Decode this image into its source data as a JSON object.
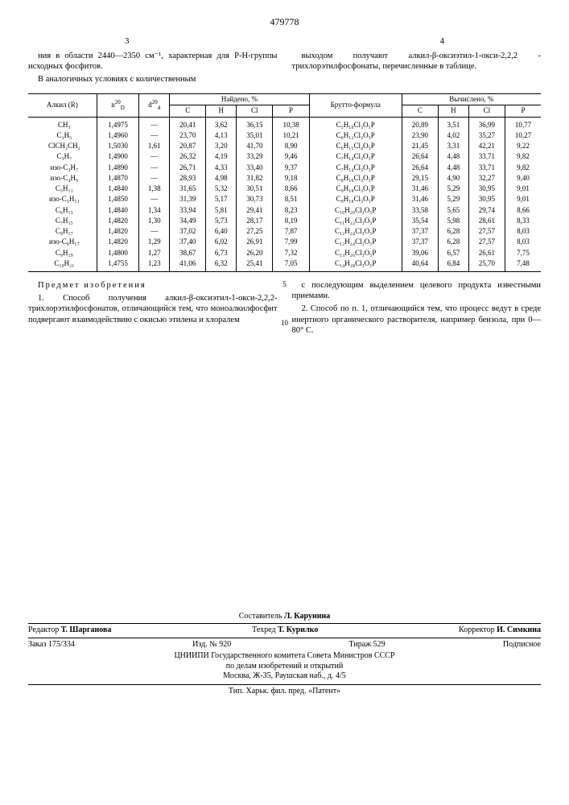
{
  "doc_number": "479778",
  "col_left_num": "3",
  "col_right_num": "4",
  "top_left_para1": "ния в области 2440—2350 см⁻¹, характерная для P-H-группы исходных фосфитов.",
  "top_left_para2": "В аналогичных условиях с количественным",
  "top_right_para1": "выходом получают алкил-β-оксиэтил-1-окси-2,2,2 - трихлорэтилфосфонаты, перечисленные в таблице.",
  "table": {
    "head": {
      "alkyl": "Алкил (R)",
      "nD": "n",
      "nD_sup": "20",
      "nD_sub": "D",
      "d4": "d",
      "d4_sup": "20",
      "d4_sub": "4",
      "found": "Найдено, %",
      "calc": "Вычислено, %",
      "brutto": "Брутто-формула",
      "C": "C",
      "H": "H",
      "Cl": "Cl",
      "P": "P"
    },
    "rows": [
      {
        "r": "CH₃",
        "n": "1,4975",
        "d": "—",
        "fc": "20,41",
        "fh": "3,62",
        "fcl": "36,15",
        "fp": "10,38",
        "bf": "C₅H₁₀Cl₃O₅P",
        "cc": "20,89",
        "ch": "3,51",
        "ccl": "36,99",
        "cp": "10,77"
      },
      {
        "r": "C₂H₅",
        "n": "1,4960",
        "d": "—",
        "fc": "23,70",
        "fh": "4,13",
        "fcl": "35,01",
        "fp": "10,21",
        "bf": "C₆H₁₂Cl₃O₅P",
        "cc": "23,90",
        "ch": "4,02",
        "ccl": "35,27",
        "cp": "10,27"
      },
      {
        "r": "ClCH₂CH₂",
        "n": "1,5030",
        "d": "1,61",
        "fc": "20,87",
        "fh": "3,20",
        "fcl": "41,70",
        "fp": "8,90",
        "bf": "C₆H₁₁Cl₄O₅P",
        "cc": "21,45",
        "ch": "3,31",
        "ccl": "42,21",
        "cp": "9,22"
      },
      {
        "r": "C₃H₇",
        "n": "1,4900",
        "d": "—",
        "fc": "26,32",
        "fh": "4,19",
        "fcl": "33,29",
        "fp": "9,46",
        "bf": "C₇H₁₄Cl₃O₅P",
        "cc": "26,64",
        "ch": "4,48",
        "ccl": "33,71",
        "cp": "9,82"
      },
      {
        "r": "изо-C₃H₇",
        "n": "1,4890",
        "d": "—",
        "fc": "26,71",
        "fh": "4,33",
        "fcl": "33,40",
        "fp": "9,37",
        "bf": "C₇H₁₄Cl₃O₅P",
        "cc": "26,64",
        "ch": "4,48",
        "ccl": "33,71",
        "cp": "9,82"
      },
      {
        "r": "изо-C₄H₉",
        "n": "1,4870",
        "d": "—",
        "fc": "28,93",
        "fh": "4,98",
        "fcl": "31,82",
        "fp": "9,18",
        "bf": "C₈H₁₆Cl₃O₅P",
        "cc": "29,15",
        "ch": "4,90",
        "ccl": "32,27",
        "cp": "9,40"
      },
      {
        "r": "C₅H₁₁",
        "n": "1,4840",
        "d": "1,38",
        "fc": "31,65",
        "fh": "5,32",
        "fcl": "30,51",
        "fp": "8,66",
        "bf": "C₉H₁₈Cl₃O₅P",
        "cc": "31,46",
        "ch": "5,29",
        "ccl": "30,95",
        "cp": "9,01"
      },
      {
        "r": "изо-C₅H₁₁",
        "n": "1,4850",
        "d": "—",
        "fc": "31,39",
        "fh": "5,17",
        "fcl": "30,73",
        "fp": "8,51",
        "bf": "C₉H₁₈Cl₃O₅P",
        "cc": "31,46",
        "ch": "5,29",
        "ccl": "30,95",
        "cp": "9,01"
      },
      {
        "r": "C₆H₁₃",
        "n": "1,4840",
        "d": "1,34",
        "fc": "33,94",
        "fh": "5,81",
        "fcl": "29,41",
        "fp": "8,23",
        "bf": "C₁₀H₂₀Cl₃O₅P",
        "cc": "33,58",
        "ch": "5,65",
        "ccl": "29,74",
        "cp": "8,66"
      },
      {
        "r": "C₇H₁₅",
        "n": "1,4820",
        "d": "1,30",
        "fc": "34,49",
        "fh": "5,73",
        "fcl": "28,17",
        "fp": "8,19",
        "bf": "C₁₁H₂₂Cl₃O₅P",
        "cc": "35,54",
        "ch": "5,98",
        "ccl": "28,61",
        "cp": "8,33"
      },
      {
        "r": "C₈H₁₇",
        "n": "1,4820",
        "d": "—",
        "fc": "37,02",
        "fh": "6,40",
        "fcl": "27,25",
        "fp": "7,87",
        "bf": "C₁₂H₂₄Cl₃O₅P",
        "cc": "37,37",
        "ch": "6,28",
        "ccl": "27,57",
        "cp": "8,03"
      },
      {
        "r": "изо-C₈H₁₇",
        "n": "1,4820",
        "d": "1,29",
        "fc": "37,40",
        "fh": "6,02",
        "fcl": "26,91",
        "fp": "7,99",
        "bf": "C₁₂H₂₄Cl₃O₅P",
        "cc": "37,37",
        "ch": "6,28",
        "ccl": "27,57",
        "cp": "8,03"
      },
      {
        "r": "C₉H₁₉",
        "n": "1,4800",
        "d": "1,27",
        "fc": "38,67",
        "fh": "6,73",
        "fcl": "26,20",
        "fp": "7,32",
        "bf": "C₁₃H₂₆Cl₃O₅P",
        "cc": "39,06",
        "ch": "6,57",
        "ccl": "26,61",
        "cp": "7,75"
      },
      {
        "r": "C₁₀H₂₁",
        "n": "1,4755",
        "d": "1,23",
        "fc": "41,06",
        "fh": "6,32",
        "fcl": "25,41",
        "fp": "7,05",
        "bf": "C₁₄H₂₈Cl₃O₅P",
        "cc": "40,64",
        "ch": "6,84",
        "ccl": "25,70",
        "cp": "7,48"
      }
    ]
  },
  "claims_title": "Предмет изобретения",
  "claim1": "1. Способ получения алкил-β-оксиэтил-1-окси-2,2,2-трихлорэтилфосфонатов, отличающийся тем, что моноалкилфосфит подвергают взаимодействию с окисью этилена и хлоралем",
  "claim1b": "с последующим выделением целевого продукта известными приемами.",
  "claim2": "2. Способ по п. 1, отличающийся тем, что процесс ведут в среде инертного органического растворителя, например бензола, при 0—80° С.",
  "margin_5": "5",
  "margin_10": "10",
  "footer": {
    "compiler_label": "Составитель",
    "compiler": "Л. Карунина",
    "editor_label": "Редактор",
    "editor": "Т. Шарганова",
    "techred_label": "Техред",
    "techred": "Т. Курилко",
    "corrector_label": "Корректор",
    "corrector": "И. Симкина",
    "order": "Заказ 175/334",
    "izd": "Изд. № 920",
    "tirazh": "Тираж 529",
    "podpis": "Подписное",
    "org1": "ЦНИИПИ Государственного комитета Совета Министров СССР",
    "org2": "по делам изобретений и открытий",
    "addr": "Москва, Ж-35, Раушская наб., д. 4/5",
    "typ": "Тип. Харьк. фил. пред. «Патент»"
  }
}
